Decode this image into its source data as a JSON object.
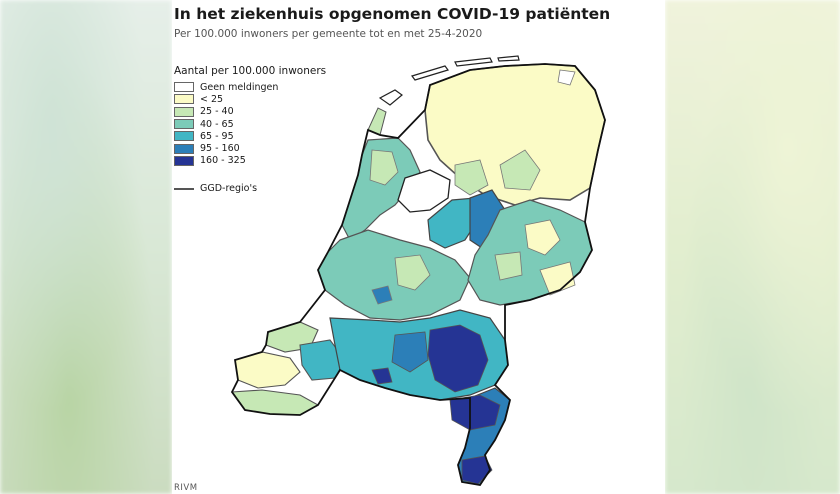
{
  "title": "In het ziekenhuis opgenomen COVID-19 patiënten",
  "subtitle": "Per 100.000 inwoners per gemeente tot en met 25-4-2020",
  "legend": {
    "title": "Aantal per 100.000 inwoners",
    "items": [
      {
        "label": "Geen meldingen",
        "color": "#ffffff"
      },
      {
        "label": "< 25",
        "color": "#fbfbc6"
      },
      {
        "label": "25 - 40",
        "color": "#c6e8b5"
      },
      {
        "label": "40 - 65",
        "color": "#7ccbb8"
      },
      {
        "label": "65 - 95",
        "color": "#41b6c4"
      },
      {
        "label": "95 - 160",
        "color": "#2c7fb8"
      },
      {
        "label": "160 - 325",
        "color": "#253494"
      }
    ],
    "region_line_label": "GGD-regio's"
  },
  "source": "RIVM",
  "map": {
    "subject": "Netherlands municipalities choropleth",
    "regions": [
      {
        "area": "Groningen / Friesland / Drenthe (north)",
        "class": "< 25"
      },
      {
        "area": "Noord-Holland",
        "class": "25 - 40"
      },
      {
        "area": "Zuid-Holland",
        "class": "40 - 65"
      },
      {
        "area": "Zeeland",
        "class": "< 25"
      },
      {
        "area": "Flevoland / Noordoostpolder",
        "class": "65 - 95"
      },
      {
        "area": "Gelderland / Overijssel (east)",
        "class": "40 - 65"
      },
      {
        "area": "Utrecht",
        "class": "40 - 65"
      },
      {
        "area": "Noord-Brabant",
        "class": "160 - 325"
      },
      {
        "area": "Limburg",
        "class": "95 - 160"
      }
    ]
  }
}
